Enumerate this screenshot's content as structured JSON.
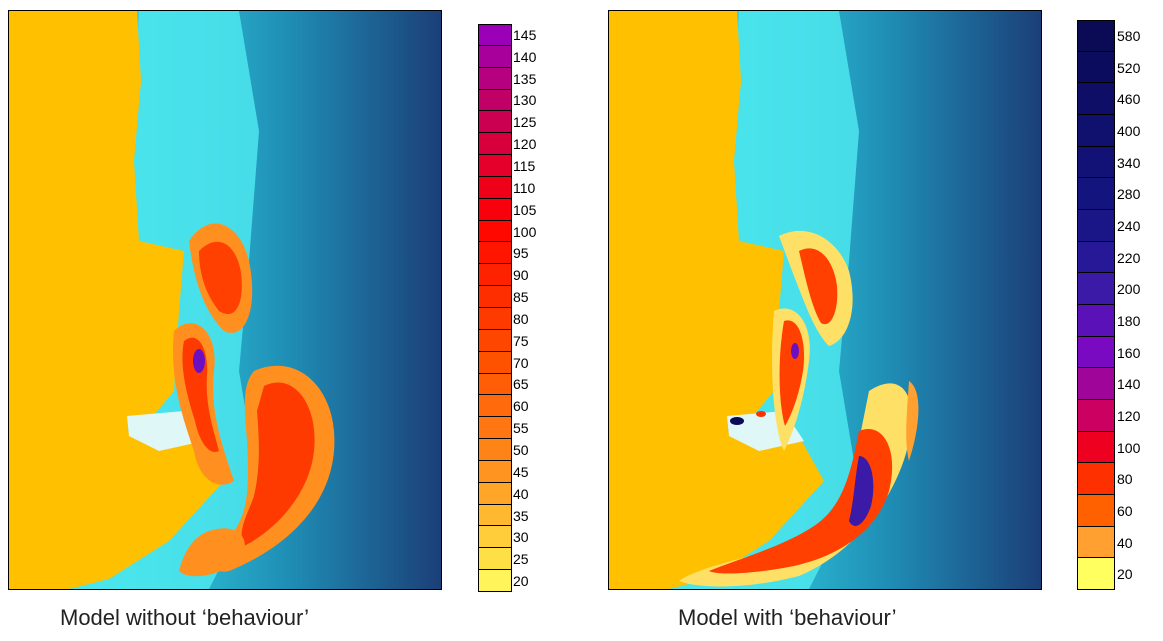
{
  "panels": [
    {
      "caption": "Model without ‘behaviour’",
      "colorbar": {
        "labels": [
          "145",
          "140",
          "135",
          "130",
          "125",
          "120",
          "115",
          "110",
          "105",
          "100",
          "95",
          "90",
          "85",
          "80",
          "75",
          "70",
          "65",
          "60",
          "55",
          "50",
          "45",
          "40",
          "35",
          "30",
          "25",
          "20"
        ],
        "colors": [
          "#9b00b8",
          "#a8009a",
          "#b5007f",
          "#c00066",
          "#cc0050",
          "#d8003c",
          "#e4002a",
          "#ee0018",
          "#f8000c",
          "#ff0800",
          "#ff1500",
          "#ff2200",
          "#ff2e00",
          "#ff3a00",
          "#ff4600",
          "#ff5200",
          "#ff5e06",
          "#ff6a0c",
          "#ff7612",
          "#ff8418",
          "#ff9420",
          "#ffa628",
          "#ffb830",
          "#ffcc3a",
          "#ffe044",
          "#fff45a"
        ]
      }
    },
    {
      "caption": "Model with ‘behaviour’",
      "colorbar": {
        "labels": [
          "580",
          "520",
          "460",
          "400",
          "340",
          "280",
          "240",
          "220",
          "200",
          "180",
          "160",
          "140",
          "120",
          "100",
          "80",
          "60",
          "40",
          "20"
        ],
        "colors": [
          "#0a0a55",
          "#0c0c5e",
          "#0e0e66",
          "#10106e",
          "#121276",
          "#14147e",
          "#1a1688",
          "#261896",
          "#3a1aa6",
          "#5a12b8",
          "#7a0ac2",
          "#a0059a",
          "#cc0060",
          "#ee0020",
          "#ff3000",
          "#ff6000",
          "#ffa030",
          "#ffff60"
        ]
      }
    }
  ],
  "colors": {
    "land": "#ffc000",
    "shallow_water": "#3fe6e8",
    "deep_water": "#1b3f78"
  }
}
